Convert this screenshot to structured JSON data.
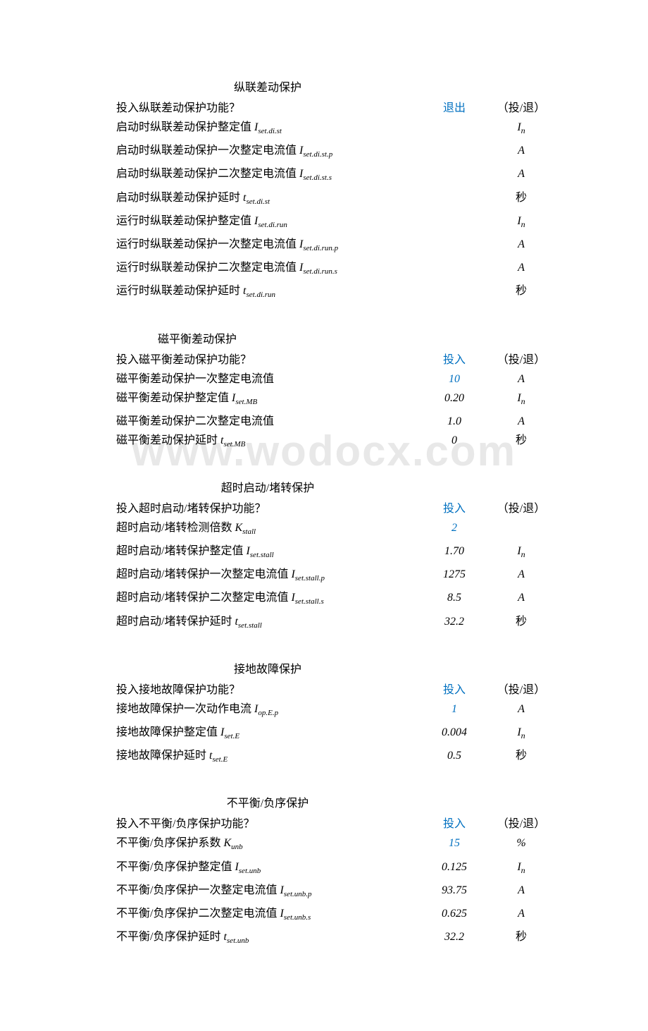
{
  "watermark": "www.wodocx.com",
  "sections": [
    {
      "title": "纵联差动保护",
      "rows": [
        {
          "label_text": "投入纵联差动保护功能？",
          "sym": "",
          "sub": "",
          "value": "退出",
          "value_blue": true,
          "value_cn": true,
          "unit": "（投/退）",
          "unit_cn": true
        },
        {
          "label_text": "启动时纵联差动保护整定值 ",
          "sym": "I",
          "sub": "set.di.st",
          "value": "",
          "unit_sym": "I",
          "unit_sub": "n"
        },
        {
          "label_text": "启动时纵联差动保护一次整定电流值 ",
          "sym": "I",
          "sub": "set.di.st.p",
          "value": "",
          "unit": "A"
        },
        {
          "label_text": "启动时纵联差动保护二次整定电流值 ",
          "sym": "I",
          "sub": "set.di.st.s",
          "value": "",
          "unit": "A"
        },
        {
          "label_text": "启动时纵联差动保护延时 ",
          "sym": "t",
          "sub": "set.di.st",
          "value": "",
          "unit": "秒",
          "unit_cn": true
        },
        {
          "label_text": "运行时纵联差动保护整定值 ",
          "sym": "I",
          "sub": "set.di.run",
          "value": "",
          "unit_sym": "I",
          "unit_sub": "n"
        },
        {
          "label_text": "运行时纵联差动保护一次整定电流值 ",
          "sym": "I",
          "sub": "set.di.run.p",
          "value": "",
          "unit": "A"
        },
        {
          "label_text": "运行时纵联差动保护二次整定电流值 ",
          "sym": "I",
          "sub": "set.di.run.s",
          "value": "",
          "unit": "A"
        },
        {
          "label_text": "运行时纵联差动保护延时 ",
          "sym": "t",
          "sub": "set.di.run",
          "value": "",
          "unit": "秒",
          "unit_cn": true
        }
      ]
    },
    {
      "title": "磁平衡差动保护",
      "title_indent": true,
      "rows": [
        {
          "label_text": "投入磁平衡差动保护功能？",
          "sym": "",
          "sub": "",
          "value": "投入",
          "value_blue": true,
          "value_cn": true,
          "unit": "（投/退）",
          "unit_cn": true
        },
        {
          "label_text": "磁平衡差动保护一次整定电流值",
          "sym": "",
          "sub": "",
          "value": "10",
          "value_blue": true,
          "unit": "A"
        },
        {
          "label_text": "磁平衡差动保护整定值 ",
          "sym": "I",
          "sub": "set.MB",
          "value": "0.20",
          "unit_sym": "I",
          "unit_sub": "n"
        },
        {
          "label_text": "磁平衡差动保护二次整定电流值",
          "sym": "",
          "sub": "",
          "value": "1.0",
          "unit": "A"
        },
        {
          "label_text": "磁平衡差动保护延时 ",
          "sym": "t",
          "sub": "set.MB",
          "value": "0",
          "unit": "秒",
          "unit_cn": true
        }
      ]
    },
    {
      "title": "超时启动/堵转保护",
      "rows": [
        {
          "label_text": "投入超时启动/堵转保护功能？",
          "sym": "",
          "sub": "",
          "value": "投入",
          "value_blue": true,
          "value_cn": true,
          "unit": "（投/退）",
          "unit_cn": true
        },
        {
          "label_text": "超时启动/堵转检测倍数 ",
          "sym": "K",
          "sub": "stall",
          "value": "2",
          "value_blue": true,
          "unit": ""
        },
        {
          "label_text": "超时启动/堵转保护整定值 ",
          "sym": "I",
          "sub": "set.stall",
          "value": "1.70",
          "unit_sym": "I",
          "unit_sub": "n"
        },
        {
          "label_text": "超时启动/堵转保护一次整定电流值 ",
          "sym": "I",
          "sub": "set.stall.p",
          "value": "1275",
          "unit": "A"
        },
        {
          "label_text": "超时启动/堵转保护二次整定电流值 ",
          "sym": "I",
          "sub": "set.stall.s",
          "value": "8.5",
          "unit": "A"
        },
        {
          "label_text": "超时启动/堵转保护延时 ",
          "sym": "t",
          "sub": "set.stall",
          "value": "32.2",
          "unit": "秒",
          "unit_cn": true
        }
      ]
    },
    {
      "title": "接地故障保护",
      "rows": [
        {
          "label_text": "投入接地故障保护功能？",
          "sym": "",
          "sub": "",
          "value": "投入",
          "value_blue": true,
          "value_cn": true,
          "unit": "（投/退）",
          "unit_cn": true
        },
        {
          "label_text": "接地故障保护一次动作电流 ",
          "sym": "I",
          "sub": "op.E.p",
          "value": "1",
          "value_blue": true,
          "unit": "A"
        },
        {
          "label_text": "接地故障保护整定值 ",
          "sym": "I",
          "sub": "set.E",
          "value": "0.004",
          "unit_sym": "I",
          "unit_sub": "n"
        },
        {
          "label_text": "接地故障保护延时 ",
          "sym": "t",
          "sub": "set.E",
          "value": "0.5",
          "unit": "秒",
          "unit_cn": true
        }
      ]
    },
    {
      "title": "不平衡/负序保护",
      "rows": [
        {
          "label_text": "投入不平衡/负序保护功能？",
          "sym": "",
          "sub": "",
          "value": "投入",
          "value_blue": true,
          "value_cn": true,
          "unit": "（投/退）",
          "unit_cn": true
        },
        {
          "label_text": "不平衡/负序保护系数 ",
          "sym": "K",
          "sub": "unb",
          "value": "15",
          "value_blue": true,
          "unit": "%"
        },
        {
          "label_text": "不平衡/负序保护整定值 ",
          "sym": "I",
          "sub": "set.unb",
          "value": "0.125",
          "unit_sym": "I",
          "unit_sub": "n"
        },
        {
          "label_text": "不平衡/负序保护一次整定电流值 ",
          "sym": "I",
          "sub": "set.unb.p",
          "value": "93.75",
          "unit": "A"
        },
        {
          "label_text": "不平衡/负序保护二次整定电流值 ",
          "sym": "I",
          "sub": "set.unb.s",
          "value": "0.625",
          "unit": "A"
        },
        {
          "label_text": "不平衡/负序保护延时 ",
          "sym": "t",
          "sub": "set.unb",
          "value": "32.2",
          "unit": "秒",
          "unit_cn": true
        }
      ]
    }
  ]
}
